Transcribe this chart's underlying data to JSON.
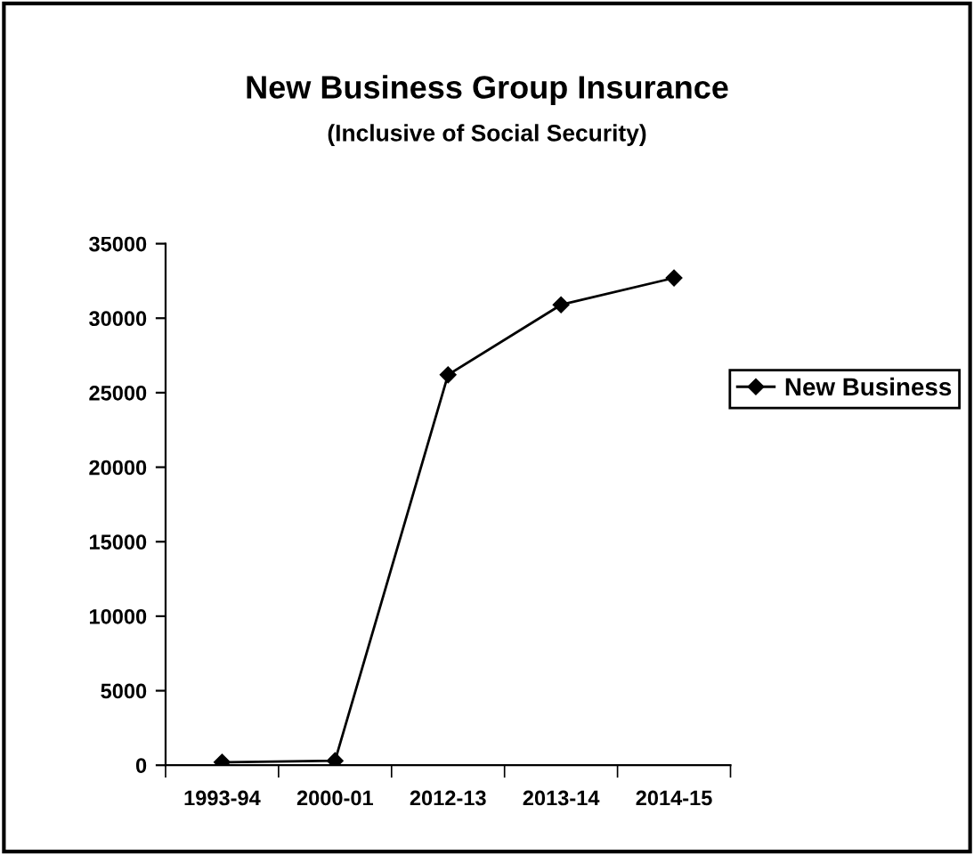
{
  "chart_data": {
    "type": "line",
    "title": "New Business Group Insurance",
    "subtitle": "(Inclusive of Social Security)",
    "categories": [
      "1993-94",
      "2000-01",
      "2012-13",
      "2013-14",
      "2014-15"
    ],
    "series": [
      {
        "name": "New Business",
        "color": "#000000",
        "values": [
          200,
          300,
          26200,
          30900,
          32700
        ]
      }
    ],
    "ylim": [
      0,
      35000
    ],
    "yticks": [
      0,
      5000,
      10000,
      15000,
      20000,
      25000,
      30000,
      35000
    ],
    "marker": "diamond",
    "line_style": "solid",
    "grid": false,
    "legend": "right"
  }
}
